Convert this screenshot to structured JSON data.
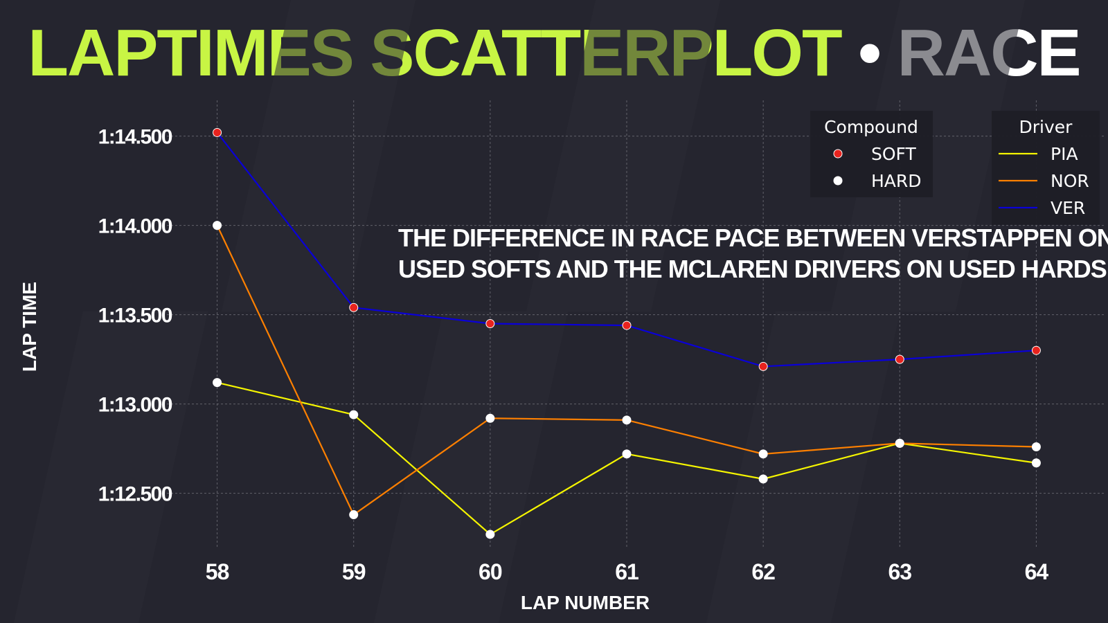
{
  "title": {
    "main": "LAPTIMES SCATTERPLOT",
    "separator": "•",
    "session": "RACE"
  },
  "chart_data": {
    "type": "scatter",
    "xlabel": "LAP NUMBER",
    "ylabel": "LAP TIME",
    "x": [
      58,
      59,
      60,
      61,
      62,
      63,
      64
    ],
    "xticks": [
      "58",
      "59",
      "60",
      "61",
      "62",
      "63",
      "64"
    ],
    "xlim": [
      57.5,
      64.5
    ],
    "ylim": [
      72.2,
      74.7
    ],
    "yticks": [
      72.5,
      73.0,
      73.5,
      74.0,
      74.5
    ],
    "ytick_labels": [
      "1:12.500",
      "1:13.000",
      "1:13.500",
      "1:14.000",
      "1:14.500"
    ],
    "grid": true,
    "annotation": [
      "THE DIFFERENCE IN RACE PACE BETWEEN VERSTAPPEN ON",
      "USED SOFTS AND THE MCLAREN DRIVERS ON USED HARDS"
    ],
    "series": [
      {
        "name": "PIA",
        "color": "#f5f500",
        "compound": [
          "HARD",
          "HARD",
          "HARD",
          "HARD",
          "HARD",
          "HARD",
          "HARD"
        ],
        "values": [
          73.12,
          72.94,
          72.27,
          72.72,
          72.58,
          72.78,
          72.67
        ]
      },
      {
        "name": "NOR",
        "color": "#ff8000",
        "compound": [
          "HARD",
          "HARD",
          "HARD",
          "HARD",
          "HARD",
          "HARD",
          "HARD"
        ],
        "values": [
          74.0,
          72.38,
          72.92,
          72.91,
          72.72,
          72.78,
          72.76
        ]
      },
      {
        "name": "VER",
        "color": "#0a00d8",
        "compound": [
          "SOFT",
          "SOFT",
          "SOFT",
          "SOFT",
          "SOFT",
          "SOFT",
          "SOFT"
        ],
        "values": [
          74.52,
          73.54,
          73.45,
          73.44,
          73.21,
          73.25,
          73.3
        ]
      }
    ],
    "legend_compound": {
      "title": "Compound",
      "items": [
        {
          "label": "SOFT",
          "color": "#e8231e"
        },
        {
          "label": "HARD",
          "color": "#ffffff"
        }
      ]
    },
    "legend_driver": {
      "title": "Driver",
      "items": [
        "PIA",
        "NOR",
        "VER"
      ]
    },
    "legend_position": "top-right"
  }
}
